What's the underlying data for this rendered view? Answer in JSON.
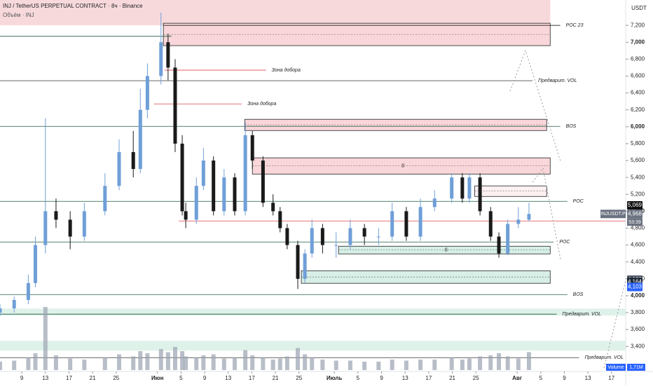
{
  "chart_data": {
    "type": "candlestick",
    "title": "INJ / TetherUS PERPETUAL CONTRACT · 8ч · Binance",
    "subtitle": "Объём · INJ",
    "y_unit": "USDT",
    "symbol_tag": "INJUSDT.P",
    "countdown": "53:39",
    "volume_title": "Volume",
    "volume_label": "1,71M",
    "up_color": "#6f9fd8",
    "down_color": "#1a1a1a",
    "volume_color": "#9aa3b0",
    "xlim": [
      5.3,
      111.4
    ],
    "ylim": [
      3120,
      7500
    ],
    "xticks": [
      9,
      13,
      17,
      21,
      25,
      {
        "value": 32,
        "label": "Июн"
      },
      {
        "value": 36,
        "label": "5"
      },
      {
        "value": 40,
        "label": "9"
      },
      {
        "value": 44,
        "label": "13"
      },
      {
        "value": 48,
        "label": "17"
      },
      {
        "value": 52,
        "label": "21"
      },
      {
        "value": 56,
        "label": "25"
      },
      {
        "value": 62,
        "label": "Июль"
      },
      {
        "value": 66,
        "label": "5"
      },
      {
        "value": 70,
        "label": "9"
      },
      {
        "value": 74,
        "label": "13"
      },
      {
        "value": 78,
        "label": "17"
      },
      {
        "value": 82,
        "label": "21"
      },
      {
        "value": 86,
        "label": "25"
      },
      {
        "value": 93,
        "label": "Авг"
      },
      {
        "value": 97,
        "label": "5"
      },
      {
        "value": 101,
        "label": "9"
      },
      {
        "value": 105,
        "label": "13"
      },
      {
        "value": 109,
        "label": "17"
      }
    ],
    "yticks": [
      {
        "value": 3400,
        "label": "3,400"
      },
      {
        "value": 3600,
        "label": "3,600"
      },
      {
        "value": 3800,
        "label": "3,800"
      },
      {
        "value": 4000,
        "label": "4,000"
      },
      {
        "value": 4200,
        "label": "4,200"
      },
      {
        "value": 4400,
        "label": "4,400"
      },
      {
        "value": 4600,
        "label": "4,600"
      },
      {
        "value": 4800,
        "label": "4,800"
      },
      {
        "value": 5000,
        "label": "5,000"
      },
      {
        "value": 5200,
        "label": "5,200"
      },
      {
        "value": 5400,
        "label": "5,400"
      },
      {
        "value": 5600,
        "label": "5,600"
      },
      {
        "value": 5800,
        "label": "5,800"
      },
      {
        "value": 6000,
        "label": "6,000"
      },
      {
        "value": 6200,
        "label": "6,200"
      },
      {
        "value": 6400,
        "label": "6,400"
      },
      {
        "value": 6600,
        "label": "6,600"
      },
      {
        "value": 6800,
        "label": "6,800"
      },
      {
        "value": 7000,
        "label": "7,000"
      },
      {
        "value": 7200,
        "label": "7,200"
      }
    ],
    "x": [
      5.3,
      7.7,
      10.1,
      11.3,
      13,
      14.8,
      17.2,
      19.6,
      23.1,
      25.5,
      27.9,
      29.1,
      30.3,
      32.6,
      33.8,
      35,
      36.2,
      36.8,
      38.6,
      39.8,
      41.5,
      43.3,
      45.1,
      46.9,
      48.1,
      49.9,
      51.6,
      52.8,
      54,
      55.8,
      57,
      58.2,
      60,
      62.3,
      64.7,
      67.1,
      69.5,
      71.8,
      74.2,
      76.6,
      79,
      81.9,
      83.7,
      84.9,
      86.7,
      88.5,
      89.9,
      91.4,
      93.2,
      95
    ],
    "open": [
      3800,
      3850,
      3950,
      4150,
      4600,
      5000,
      4900,
      4700,
      5000,
      5300,
      5700,
      5500,
      6200,
      6600,
      7000,
      6700,
      5800,
      5000,
      4900,
      5300,
      5600,
      5000,
      5400,
      5000,
      5900,
      5600,
      5100,
      5000,
      4800,
      4600,
      4200,
      4500,
      4800,
      4600,
      4600,
      4800,
      4700,
      4700,
      5000,
      4700,
      5050,
      5150,
      5400,
      5150,
      5400,
      5000,
      4700,
      4500,
      4850,
      4900
    ],
    "high": [
      3900,
      3990,
      4250,
      4700,
      6100,
      5150,
      5000,
      5100,
      5450,
      5850,
      5950,
      6450,
      6750,
      7350,
      7100,
      6800,
      5900,
      5100,
      5400,
      5750,
      5650,
      5500,
      5450,
      6050,
      5950,
      5650,
      5200,
      5050,
      4850,
      4650,
      4550,
      4900,
      4850,
      4750,
      4900,
      4850,
      4800,
      5100,
      5050,
      5150,
      5250,
      5450,
      5450,
      5450,
      5450,
      5050,
      4750,
      4900,
      5050,
      5100
    ],
    "low": [
      3760,
      3800,
      3900,
      4100,
      4500,
      4800,
      4550,
      4650,
      4950,
      5250,
      5400,
      5450,
      6100,
      6500,
      6550,
      5700,
      4950,
      4800,
      4850,
      5250,
      4950,
      4950,
      4950,
      4950,
      5500,
      5050,
      4950,
      4750,
      4550,
      4080,
      4150,
      4450,
      4500,
      4450,
      4550,
      4600,
      4600,
      4650,
      4650,
      4650,
      5000,
      5100,
      5100,
      5100,
      4950,
      4650,
      4450,
      4480,
      4800,
      4880
    ],
    "close": [
      3850,
      3950,
      4150,
      4600,
      5000,
      4900,
      4700,
      5000,
      5300,
      5700,
      5500,
      6200,
      6600,
      7000,
      6700,
      5800,
      5000,
      4900,
      5300,
      5600,
      5000,
      5400,
      5000,
      5900,
      5600,
      5100,
      5000,
      4800,
      4600,
      4200,
      4500,
      4800,
      4600,
      4600,
      4800,
      4700,
      4700,
      5000,
      4700,
      5050,
      5150,
      5400,
      5150,
      5400,
      5000,
      4700,
      4500,
      4850,
      4900,
      4968
    ],
    "volume": [
      0.8,
      0.9,
      1.2,
      1.6,
      6,
      1.4,
      1.1,
      1,
      1.2,
      1.5,
      1.3,
      1.8,
      1.6,
      2,
      1.7,
      2.2,
      1.8,
      1.3,
      1.2,
      1.4,
      1.5,
      1.1,
      1.2,
      1.9,
      1.4,
      1.2,
      1,
      1.1,
      1.3,
      2.1,
      1.5,
      1.2,
      1,
      0.9,
      0.9,
      0.8,
      0.8,
      1,
      0.9,
      1,
      1,
      1.2,
      1,
      1.1,
      1.3,
      1.4,
      1.6,
      1.3,
      1.1,
      1.71
    ],
    "zones": [
      {
        "x": [
          5.3,
          98.6
        ],
        "y": [
          7200,
          7500
        ],
        "color": "#f7d9dc",
        "border": false
      },
      {
        "x": [
          33,
          98.6
        ],
        "y": [
          6960,
          7225
        ],
        "color": "#f9d6d9",
        "border": true
      },
      {
        "x": [
          46.8,
          98
        ],
        "y": [
          5955,
          6088
        ],
        "color": "#f9d6d9",
        "border": true
      },
      {
        "x": [
          48.1,
          98.6
        ],
        "y": [
          5440,
          5632
        ],
        "color": "#f9d6d9",
        "border": true,
        "label": "S"
      },
      {
        "x": [
          85.8,
          98
        ],
        "y": [
          5175,
          5300
        ],
        "color": "#fdf0f1",
        "border": true
      },
      {
        "x": [
          62.7,
          98.6
        ],
        "y": [
          4495,
          4586
        ],
        "color": "#d7efe6",
        "border": true,
        "label": "S"
      },
      {
        "x": [
          56.4,
          98.6
        ],
        "y": [
          4147,
          4296
        ],
        "color": "#d7efe6",
        "border": true
      },
      {
        "x": [
          5.3,
          111.4
        ],
        "y": [
          3765,
          3848
        ],
        "color": "#dff2ea",
        "border": false
      },
      {
        "x": [
          5.3,
          111.4
        ],
        "y": [
          3350,
          3466
        ],
        "color": "#dff2ea",
        "border": false
      }
    ],
    "levels": [
      {
        "price": 7200,
        "x": [
          33,
          100.3
        ],
        "label": "POC  23",
        "color": "#222"
      },
      {
        "price": 7070,
        "x": [
          5.3,
          34.4
        ],
        "color": "#1e5a3c"
      },
      {
        "price": 6670,
        "x": [
          33.2,
          50.4
        ],
        "label": "Зона добора",
        "color": "#e0464c"
      },
      {
        "price": 6545,
        "x": [
          5.3,
          95.6
        ],
        "label": "Предварит. VOL",
        "color": "#333"
      },
      {
        "price": 6270,
        "x": [
          31.4,
          46.3
        ],
        "label": "Зона добора",
        "color": "#e0464c"
      },
      {
        "price": 6005,
        "x": [
          5.3,
          100.3
        ],
        "label": "BOS",
        "color": "#1e5a3c"
      },
      {
        "price": 5117,
        "x": [
          5.3,
          101.5
        ],
        "label": "POC",
        "color": "#1e5a3c"
      },
      {
        "price": 4885,
        "x": [
          35.6,
          111.4
        ],
        "color": "#e0464c"
      },
      {
        "price": 4636,
        "x": [
          5.3,
          99.2
        ],
        "label": "POC",
        "color": "#1e5a3c"
      },
      {
        "price": 4014,
        "x": [
          5.3,
          101.5
        ],
        "label": "BOS",
        "color": "#1e5a3c"
      },
      {
        "price": 3782,
        "x": [
          5.3,
          99.7
        ],
        "label": "Предварит. VOL",
        "color": "#1e5a3c"
      },
      {
        "price": 3267,
        "x": [
          5.3,
          103.5
        ],
        "label": "Предварит. VOL",
        "color": "#333"
      }
    ],
    "price_tags": [
      {
        "value": 5069,
        "label": "5,069",
        "color": "#111"
      },
      {
        "value": 4968,
        "label": "4,968",
        "color": "#6b7280"
      },
      {
        "value": 4190,
        "label": "4,190",
        "color": "#4b5563"
      },
      {
        "value": 4164,
        "label": "4,164",
        "color": "#1f2937"
      },
      {
        "value": 4103,
        "label": "4,103",
        "color": "#2962ff"
      }
    ]
  }
}
